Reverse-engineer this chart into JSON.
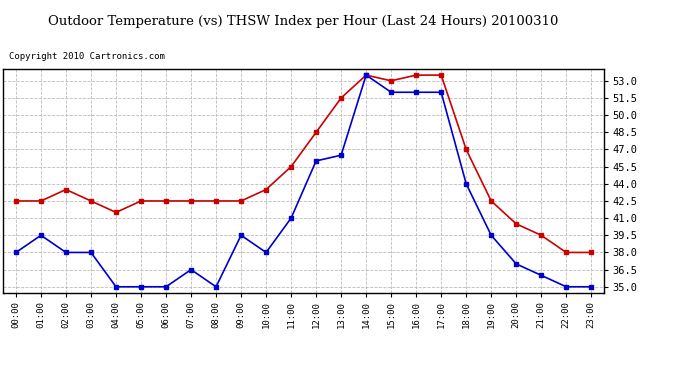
{
  "title": "Outdoor Temperature (vs) THSW Index per Hour (Last 24 Hours) 20100310",
  "copyright": "Copyright 2010 Cartronics.com",
  "hours": [
    "00:00",
    "01:00",
    "02:00",
    "03:00",
    "04:00",
    "05:00",
    "06:00",
    "07:00",
    "08:00",
    "09:00",
    "10:00",
    "11:00",
    "12:00",
    "13:00",
    "14:00",
    "15:00",
    "16:00",
    "17:00",
    "18:00",
    "19:00",
    "20:00",
    "21:00",
    "22:00",
    "23:00"
  ],
  "temp_blue": [
    38.0,
    39.5,
    38.0,
    38.0,
    35.0,
    35.0,
    35.0,
    36.5,
    35.0,
    39.5,
    38.0,
    41.0,
    46.0,
    46.5,
    53.5,
    52.0,
    52.0,
    52.0,
    44.0,
    39.5,
    37.0,
    36.0,
    35.0,
    35.0
  ],
  "thsw_red": [
    42.5,
    42.5,
    43.5,
    42.5,
    41.5,
    42.5,
    42.5,
    42.5,
    42.5,
    42.5,
    43.5,
    45.5,
    48.5,
    51.5,
    53.5,
    53.0,
    53.5,
    53.5,
    47.0,
    42.5,
    40.5,
    39.5,
    38.0,
    38.0
  ],
  "ylim_min": 34.5,
  "ylim_max": 54.0,
  "yticks": [
    35.0,
    36.5,
    38.0,
    39.5,
    41.0,
    42.5,
    44.0,
    45.5,
    47.0,
    48.5,
    50.0,
    51.5,
    53.0
  ],
  "blue_color": "#0000cc",
  "red_color": "#cc0000",
  "bg_color": "#ffffff",
  "grid_color": "#bbbbbb",
  "title_bg": "#cccccc",
  "border_color": "#000000",
  "fig_width": 6.9,
  "fig_height": 3.75,
  "dpi": 100
}
